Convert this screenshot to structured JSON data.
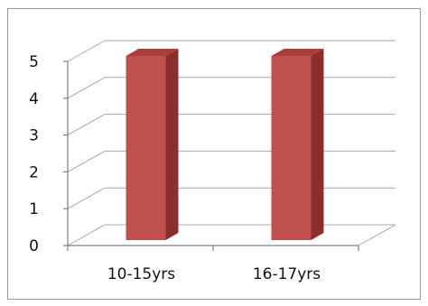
{
  "chart_data": {
    "type": "bar",
    "title": "",
    "xlabel": "",
    "ylabel": "",
    "categories": [
      "10-15yrs",
      "16-17yrs"
    ],
    "values": [
      5,
      5
    ],
    "ylim": [
      0,
      5
    ],
    "yticks": [
      0,
      1,
      2,
      3,
      4,
      5
    ],
    "grid": true,
    "three_d": true,
    "legend": "none",
    "colors": {
      "bar_front": "#c0504d",
      "bar_side": "#8b2f2d",
      "bar_top": "#a93f3c",
      "gridline": "#a6a6a6",
      "axis": "#7f7f7f"
    }
  }
}
